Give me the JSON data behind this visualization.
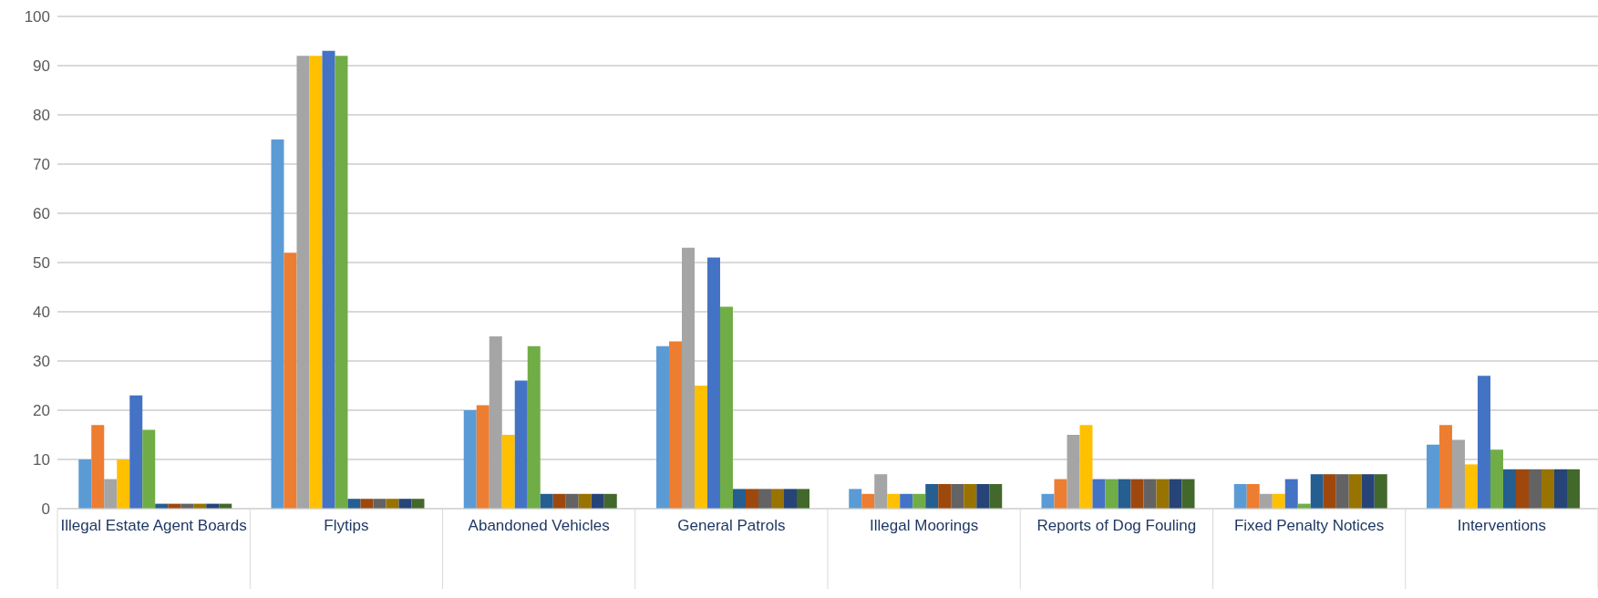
{
  "chart_data": {
    "type": "bar",
    "categories": [
      "Illegal Estate Agent Boards",
      "Flytips",
      "Abandoned Vehicles",
      "General Patrols",
      "Illegal Moorings",
      "Reports of Dog Fouling",
      "Fixed Penalty Notices",
      "Interventions"
    ],
    "series": [
      {
        "color": "#5b9bd5",
        "values": [
          10,
          75,
          20,
          33,
          4,
          3,
          5,
          13
        ]
      },
      {
        "color": "#ed7d31",
        "values": [
          17,
          52,
          21,
          34,
          3,
          6,
          5,
          17
        ]
      },
      {
        "color": "#a5a5a5",
        "values": [
          6,
          92,
          35,
          53,
          7,
          15,
          3,
          14
        ]
      },
      {
        "color": "#ffc000",
        "values": [
          10,
          92,
          15,
          25,
          3,
          17,
          3,
          9
        ]
      },
      {
        "color": "#4472c4",
        "values": [
          23,
          93,
          26,
          51,
          3,
          6,
          6,
          27
        ]
      },
      {
        "color": "#70ad47",
        "values": [
          16,
          92,
          33,
          41,
          3,
          6,
          1,
          12
        ]
      },
      {
        "color": "#255e91",
        "values": [
          1,
          2,
          3,
          4,
          5,
          6,
          7,
          8
        ]
      },
      {
        "color": "#9e480e",
        "values": [
          1,
          2,
          3,
          4,
          5,
          6,
          7,
          8
        ]
      },
      {
        "color": "#636363",
        "values": [
          1,
          2,
          3,
          4,
          5,
          6,
          7,
          8
        ]
      },
      {
        "color": "#997300",
        "values": [
          1,
          2,
          3,
          4,
          5,
          6,
          7,
          8
        ]
      },
      {
        "color": "#264478",
        "values": [
          1,
          2,
          3,
          4,
          5,
          6,
          7,
          8
        ]
      },
      {
        "color": "#43682b",
        "values": [
          1,
          2,
          3,
          4,
          5,
          6,
          7,
          8
        ]
      }
    ],
    "ylim": [
      0,
      100
    ],
    "yticks": [
      0,
      10,
      20,
      30,
      40,
      50,
      60,
      70,
      80,
      90,
      100
    ],
    "grid": "y",
    "legend": false
  }
}
